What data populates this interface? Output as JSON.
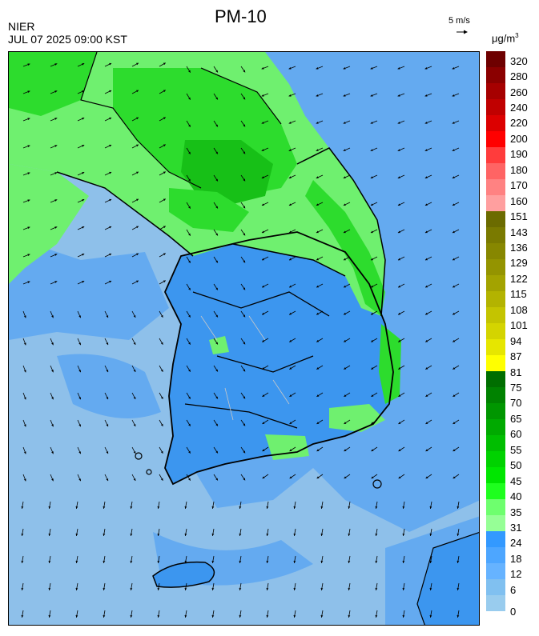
{
  "header": {
    "title": "PM-10",
    "org": "NIER",
    "timestamp": "JUL 07 2025 09:00 KST",
    "wind_reference": "5 m/s",
    "unit_base": "μg/m",
    "unit_exp": "3"
  },
  "legend": {
    "labels": [
      "320",
      "280",
      "260",
      "240",
      "220",
      "200",
      "190",
      "180",
      "170",
      "160",
      "151",
      "143",
      "136",
      "129",
      "122",
      "115",
      "108",
      "101",
      "94",
      "87",
      "81",
      "75",
      "70",
      "65",
      "60",
      "55",
      "50",
      "45",
      "40",
      "35",
      "31",
      "24",
      "18",
      "12",
      "6",
      "0"
    ],
    "colors": [
      "#6e0000",
      "#8b0000",
      "#a60000",
      "#c00000",
      "#dc0000",
      "#ff0000",
      "#ff3c3c",
      "#ff6464",
      "#ff8282",
      "#ff9f9f",
      "#6b6b00",
      "#7a7a00",
      "#878700",
      "#949400",
      "#a3a300",
      "#b3b300",
      "#c4c400",
      "#d4d400",
      "#e6e600",
      "#ffff00",
      "#006e00",
      "#008200",
      "#009600",
      "#00aa00",
      "#00be00",
      "#00d200",
      "#00e600",
      "#1eff1e",
      "#6eff6e",
      "#96ff96",
      "#3399ff",
      "#4da6ff",
      "#66b3ff",
      "#80c0f0",
      "#99ccee"
    ]
  },
  "map_colors": {
    "sea_light": "#8ec0ea",
    "sea_mid": "#64aaf0",
    "land_blue": "#3c96ef",
    "land_green_light": "#6ff06f",
    "land_green": "#2ddc2d",
    "land_green_dark": "#17c017",
    "coast_line": "#000000",
    "admin_line": "#c8c8c8",
    "arrow": "#000000"
  }
}
